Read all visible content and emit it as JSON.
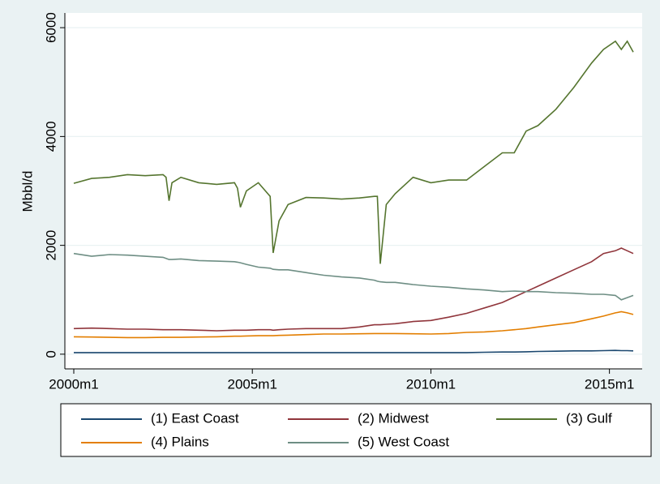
{
  "chart_data": {
    "type": "line",
    "y_label": "Mbbl/d",
    "x": [
      480,
      486,
      492,
      498,
      504,
      510,
      511,
      512,
      513,
      516,
      522,
      528,
      534,
      535,
      536,
      538,
      542,
      546,
      547,
      549,
      552,
      558,
      564,
      570,
      576,
      581,
      582,
      583,
      585,
      588,
      594,
      600,
      606,
      612,
      618,
      624,
      628,
      632,
      636,
      642,
      648,
      654,
      658,
      662,
      664,
      666,
      668
    ],
    "series": [
      {
        "name": "(1) East Coast",
        "color": "#1a476f",
        "values": [
          30,
          30,
          30,
          30,
          30,
          30,
          30,
          30,
          30,
          30,
          30,
          30,
          30,
          30,
          30,
          30,
          30,
          30,
          30,
          30,
          30,
          30,
          30,
          30,
          30,
          30,
          30,
          30,
          30,
          30,
          30,
          30,
          30,
          30,
          35,
          40,
          40,
          45,
          50,
          55,
          60,
          60,
          65,
          70,
          65,
          65,
          60
        ]
      },
      {
        "name": "(2) Midwest",
        "color": "#90353b",
        "values": [
          470,
          480,
          470,
          460,
          460,
          450,
          450,
          450,
          450,
          450,
          440,
          430,
          440,
          440,
          440,
          440,
          450,
          450,
          440,
          450,
          460,
          470,
          470,
          470,
          500,
          540,
          540,
          540,
          550,
          560,
          600,
          620,
          680,
          750,
          850,
          950,
          1050,
          1150,
          1250,
          1400,
          1550,
          1700,
          1850,
          1900,
          1950,
          1900,
          1850
        ]
      },
      {
        "name": "(3) Gulf",
        "color": "#55752f",
        "values": [
          3140,
          3230,
          3250,
          3300,
          3280,
          3300,
          3250,
          2820,
          3150,
          3250,
          3150,
          3120,
          3150,
          3050,
          2700,
          3000,
          3150,
          2900,
          1860,
          2450,
          2750,
          2880,
          2870,
          2850,
          2870,
          2900,
          2900,
          1660,
          2750,
          2950,
          3250,
          3150,
          3200,
          3200,
          3450,
          3700,
          3700,
          4100,
          4200,
          4500,
          4900,
          5350,
          5600,
          5750,
          5600,
          5750,
          5550
        ]
      },
      {
        "name": "(4) Plains",
        "color": "#e37e00",
        "values": [
          320,
          315,
          310,
          305,
          305,
          310,
          310,
          310,
          310,
          310,
          315,
          320,
          330,
          330,
          330,
          335,
          340,
          340,
          340,
          345,
          350,
          360,
          370,
          370,
          375,
          380,
          380,
          380,
          380,
          380,
          375,
          370,
          380,
          400,
          410,
          430,
          450,
          470,
          500,
          540,
          580,
          650,
          700,
          760,
          780,
          760,
          730
        ]
      },
      {
        "name": "(5) West Coast",
        "color": "#6e8e84",
        "values": [
          1850,
          1800,
          1830,
          1820,
          1800,
          1780,
          1760,
          1740,
          1740,
          1750,
          1720,
          1710,
          1700,
          1690,
          1680,
          1650,
          1600,
          1580,
          1560,
          1550,
          1550,
          1500,
          1450,
          1420,
          1400,
          1360,
          1340,
          1330,
          1320,
          1320,
          1280,
          1250,
          1230,
          1200,
          1180,
          1150,
          1160,
          1150,
          1150,
          1130,
          1120,
          1100,
          1100,
          1080,
          1000,
          1040,
          1080
        ]
      }
    ],
    "xlim": [
      477,
      671
    ],
    "xticks": [
      {
        "value": 480,
        "label": "2000m1"
      },
      {
        "value": 540,
        "label": "2005m1"
      },
      {
        "value": 600,
        "label": "2010m1"
      },
      {
        "value": 660,
        "label": "2015m1"
      }
    ],
    "ylim": [
      -270,
      6270
    ],
    "yticks": [
      0,
      2000,
      4000,
      6000
    ],
    "grid": true
  }
}
